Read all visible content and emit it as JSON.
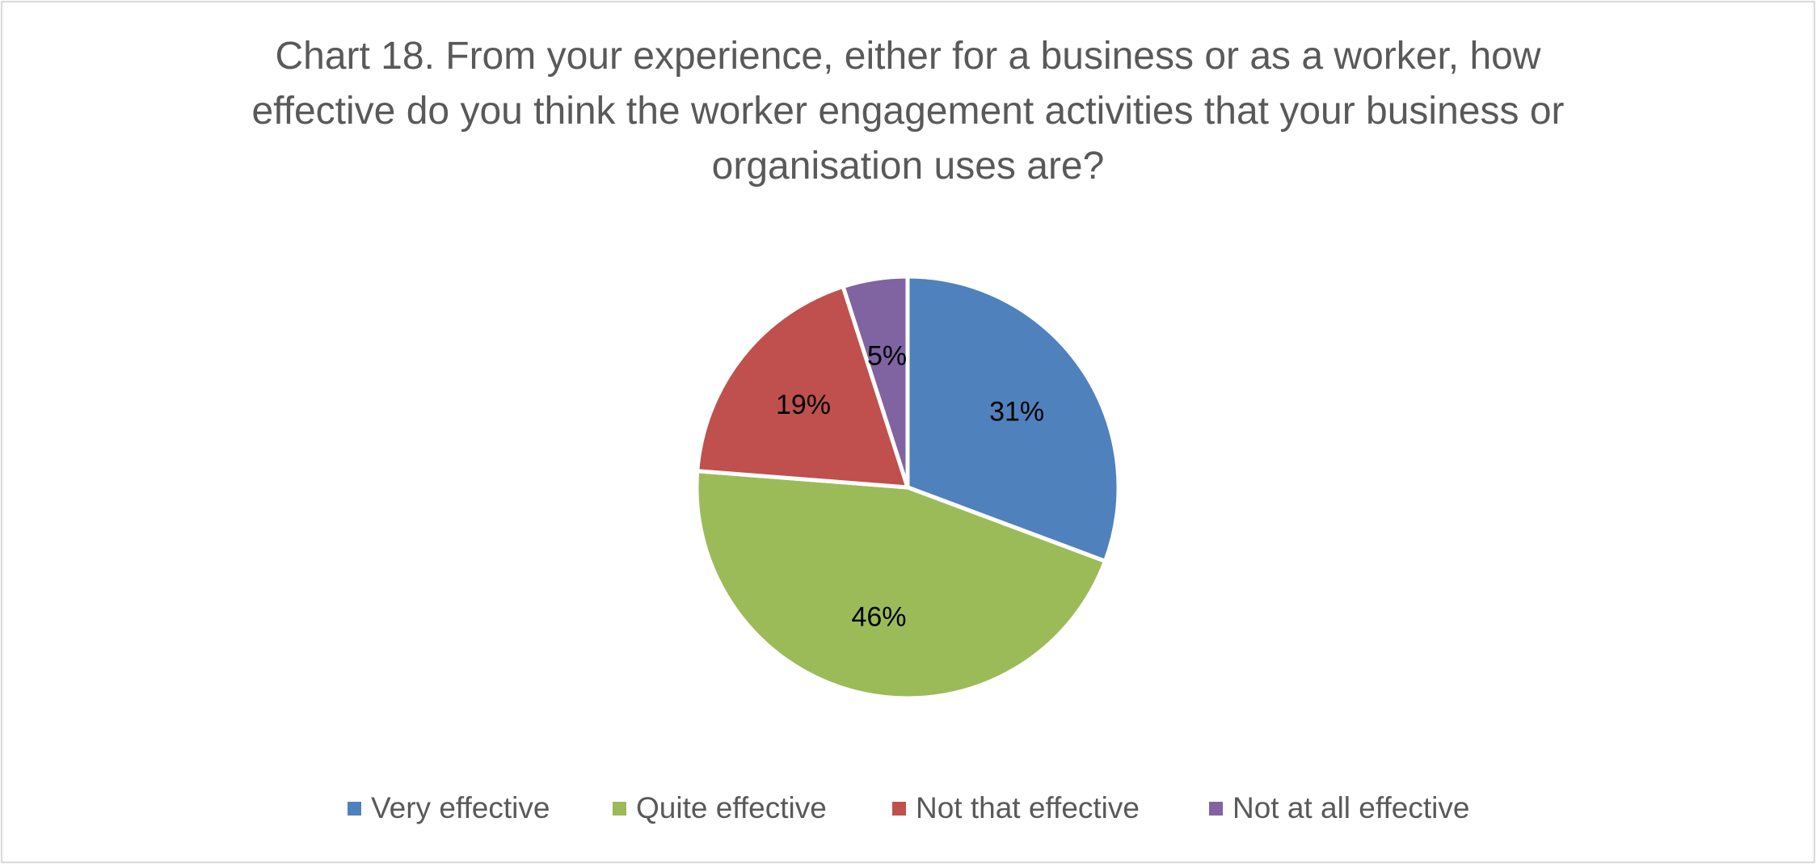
{
  "chart_data": {
    "type": "pie",
    "title_lines": [
      "Chart 18. From your experience, either for a business or as a worker, how",
      "effective do you think the worker engagement activities that your business or",
      "organisation uses are?"
    ],
    "categories": [
      "Very effective",
      "Quite effective",
      "Not that effective",
      "Not at all effective"
    ],
    "values": [
      31,
      46,
      19,
      5
    ],
    "data_labels": [
      "31%",
      "46%",
      "19%",
      "5%"
    ],
    "colors": [
      "#4f81bd",
      "#9bbb59",
      "#c0504d",
      "#8064a2"
    ],
    "legend_position": "bottom",
    "start_angle": "12 o'clock",
    "direction": "clockwise"
  }
}
